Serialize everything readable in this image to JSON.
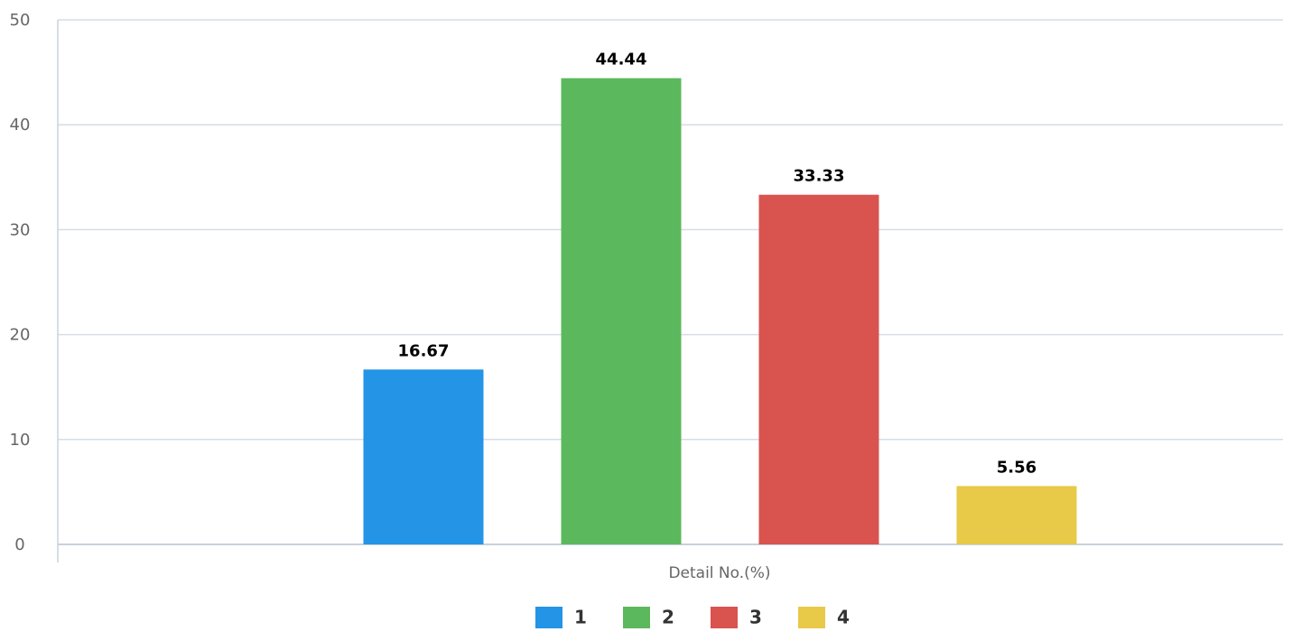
{
  "chart_data": {
    "type": "bar",
    "categories": [
      "Detail No.(%)"
    ],
    "xlabel": "",
    "ylabel": "",
    "ylim": [
      0,
      50
    ],
    "yticks": [
      0,
      10,
      20,
      30,
      40,
      50
    ],
    "grid": true,
    "legend_position": "bottom",
    "series": [
      {
        "name": "1",
        "values": [
          16.67
        ],
        "label": "16.67",
        "color": "#2394e6"
      },
      {
        "name": "2",
        "values": [
          44.44
        ],
        "label": "44.44",
        "color": "#5cb85c"
      },
      {
        "name": "3",
        "values": [
          33.33
        ],
        "label": "33.33",
        "color": "#d9534f"
      },
      {
        "name": "4",
        "values": [
          5.56
        ],
        "label": "5.56",
        "color": "#e8c948"
      }
    ]
  }
}
